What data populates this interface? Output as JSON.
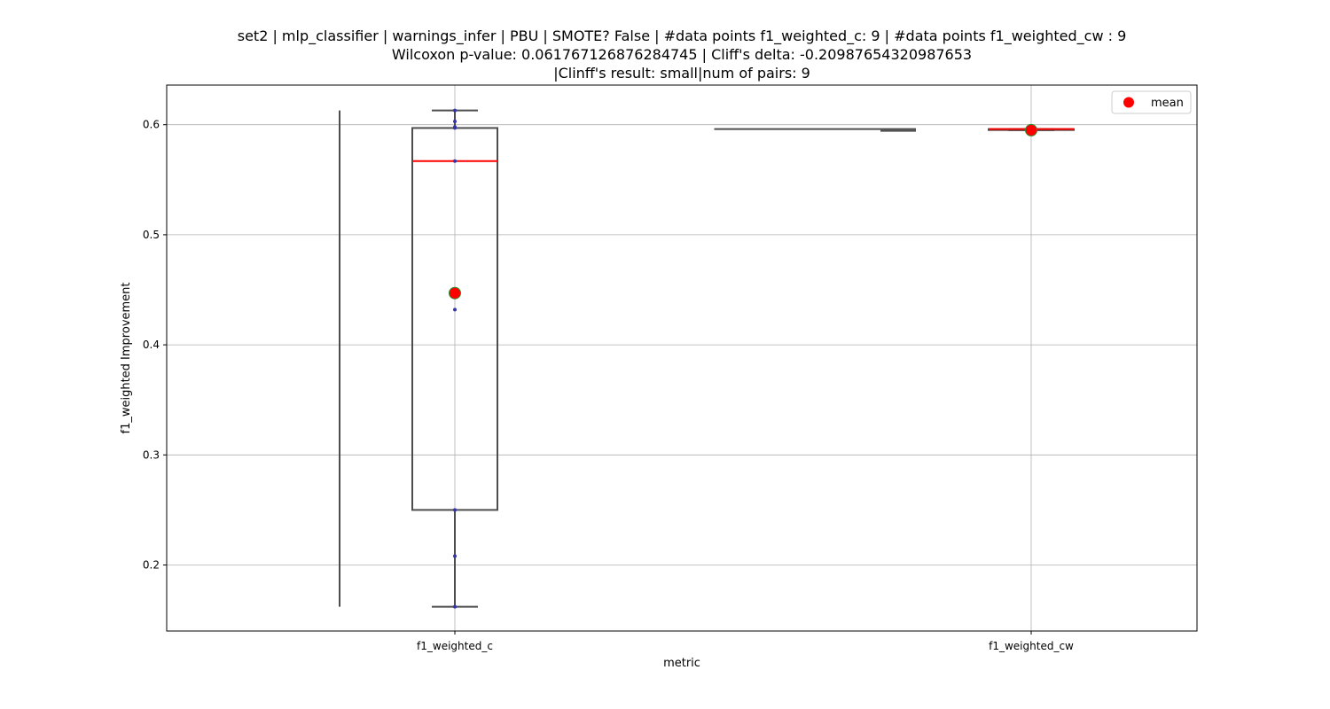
{
  "chart_data": {
    "type": "box",
    "title_lines": [
      "set2 | mlp_classifier | warnings_infer | PBU | SMOTE? False | #data points f1_weighted_c: 9 | #data points f1_weighted_cw : 9",
      "Wilcoxon p-value: 0.061767126876284745 | Cliff's delta: -0.20987654320987653",
      "|Clinff's result: small|num of pairs: 9"
    ],
    "xlabel": "metric",
    "ylabel": "f1_weighted Improvement",
    "categories": [
      "f1_weighted_c",
      "f1_weighted_cw"
    ],
    "ylim": [
      0.14,
      0.636
    ],
    "yticks": [
      0.2,
      0.3,
      0.4,
      0.5,
      0.6
    ],
    "ytick_labels": [
      "0.2",
      "0.3",
      "0.4",
      "0.5",
      "0.6"
    ],
    "grid": true,
    "legend": {
      "position": "top-right",
      "entries": [
        {
          "label": "mean",
          "color": "#ff0000"
        }
      ]
    },
    "boxes": [
      {
        "category": "f1_weighted_c",
        "whisker_low": 0.162,
        "q1": 0.25,
        "median": 0.567,
        "q3": 0.597,
        "whisker_high": 0.613,
        "mean": 0.447
      },
      {
        "category": "f1_weighted_cw",
        "whisker_low": 0.595,
        "q1": 0.596,
        "median": 0.596,
        "q3": 0.596,
        "whisker_high": 0.596,
        "mean": 0.595
      }
    ],
    "points": [
      {
        "category": "f1_weighted_c",
        "values": [
          0.162,
          0.208,
          0.25,
          0.432,
          0.567,
          0.597,
          0.598,
          0.603,
          0.613
        ]
      }
    ],
    "extra_lines": [
      {
        "kind": "vertical",
        "x_category_offset": -0.2,
        "y_from": 0.162,
        "y_to": 0.613
      },
      {
        "kind": "horizontal",
        "y": 0.596,
        "x_from_category_offset": 0.45,
        "x_to_category_offset": 0.8
      }
    ],
    "colors": {
      "box_edge": "#4d4d4d",
      "median": "#ff0000",
      "mean_fill": "#ff0000",
      "mean_edge": "#2e8b2e",
      "points": "#3333aa",
      "grid": "#b0b0b0"
    }
  }
}
